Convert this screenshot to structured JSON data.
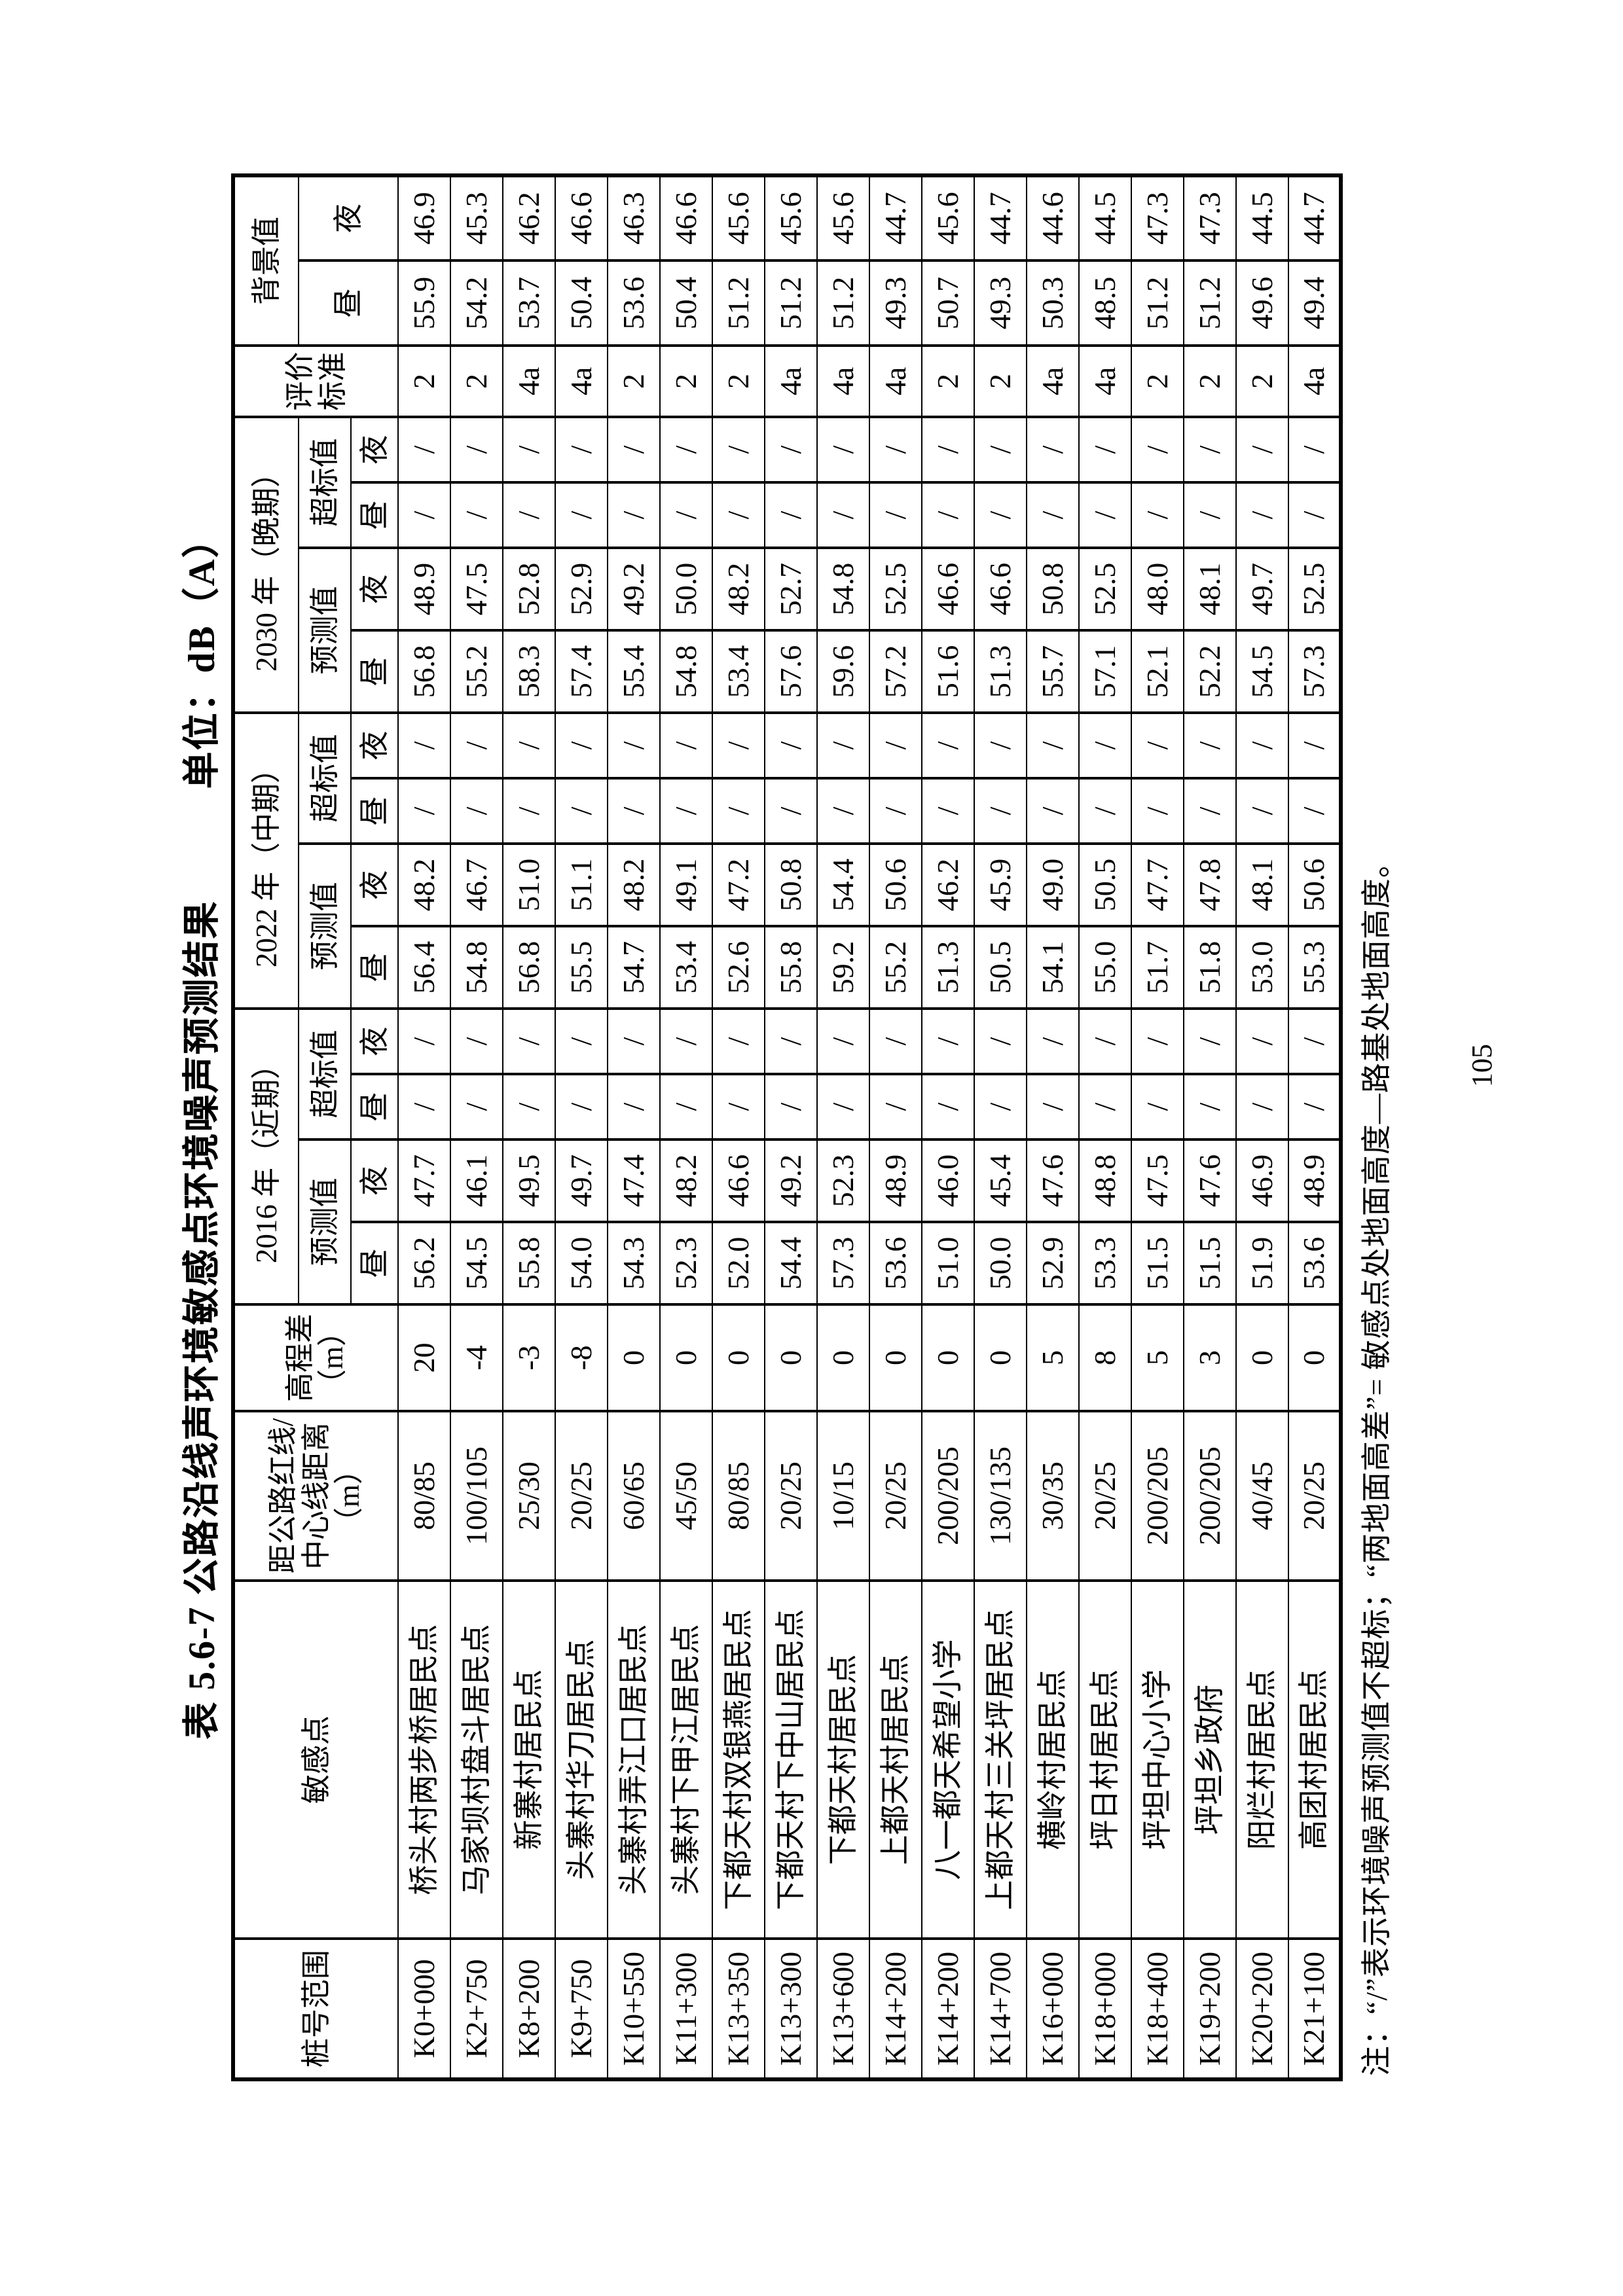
{
  "title": "表 5.6-7 公路沿线声环境敏感点环境噪声预测结果",
  "unit_label": "单位：dB（A）",
  "page_number": "105",
  "note": "注：“/”表示环境噪声预测值不超标；“两地面高差”= 敏感点处地面高度—路基处地面高度。",
  "table": {
    "headers": {
      "stake_range": "桩号范围",
      "sensitive_point": "敏感点",
      "distance": "距公路红线/中心线距离（m）",
      "elevation_diff": "高程差（m）",
      "year_2016": "2016 年（近期）",
      "year_2022": "2022 年（中期）",
      "year_2030": "2030 年（晚期）",
      "predicted": "预测值",
      "exceedance": "超标值",
      "day": "昼",
      "night": "夜",
      "standard": "评价标准",
      "background": "背景值"
    },
    "column_semantics": [
      "stake-range",
      "sensitive-point",
      "distance-m",
      "elevation-diff-m",
      "predicted-2016-day",
      "predicted-2016-night",
      "exceedance-2016-day",
      "exceedance-2016-night",
      "predicted-2022-day",
      "predicted-2022-night",
      "exceedance-2022-day",
      "exceedance-2022-night",
      "predicted-2030-day",
      "predicted-2030-night",
      "exceedance-2030-day",
      "exceedance-2030-night",
      "standard",
      "background-day",
      "background-night"
    ],
    "rows": [
      [
        "K0+000",
        "桥头村两步桥居民点",
        "80/85",
        "20",
        "56.2",
        "47.7",
        "/",
        "/",
        "56.4",
        "48.2",
        "/",
        "/",
        "56.8",
        "48.9",
        "/",
        "/",
        "2",
        "55.9",
        "46.9"
      ],
      [
        "K2+750",
        "马家坝村盘斗居民点",
        "100/105",
        "-4",
        "54.5",
        "46.1",
        "/",
        "/",
        "54.8",
        "46.7",
        "/",
        "/",
        "55.2",
        "47.5",
        "/",
        "/",
        "2",
        "54.2",
        "45.3"
      ],
      [
        "K8+200",
        "新寨村居民点",
        "25/30",
        "-3",
        "55.8",
        "49.5",
        "/",
        "/",
        "56.8",
        "51.0",
        "/",
        "/",
        "58.3",
        "52.8",
        "/",
        "/",
        "4a",
        "53.7",
        "46.2"
      ],
      [
        "K9+750",
        "头寨村华刀居民点",
        "20/25",
        "-8",
        "54.0",
        "49.7",
        "/",
        "/",
        "55.5",
        "51.1",
        "/",
        "/",
        "57.4",
        "52.9",
        "/",
        "/",
        "4a",
        "50.4",
        "46.6"
      ],
      [
        "K10+550",
        "头寨村弄江口居民点",
        "60/65",
        "0",
        "54.3",
        "47.4",
        "/",
        "/",
        "54.7",
        "48.2",
        "/",
        "/",
        "55.4",
        "49.2",
        "/",
        "/",
        "2",
        "53.6",
        "46.3"
      ],
      [
        "K11+300",
        "头寨村下甲江居民点",
        "45/50",
        "0",
        "52.3",
        "48.2",
        "/",
        "/",
        "53.4",
        "49.1",
        "/",
        "/",
        "54.8",
        "50.0",
        "/",
        "/",
        "2",
        "50.4",
        "46.6"
      ],
      [
        "K13+350",
        "下都天村双银燕居民点",
        "80/85",
        "0",
        "52.0",
        "46.6",
        "/",
        "/",
        "52.6",
        "47.2",
        "/",
        "/",
        "53.4",
        "48.2",
        "/",
        "/",
        "2",
        "51.2",
        "45.6"
      ],
      [
        "K13+300",
        "下都天村下中山居民点",
        "20/25",
        "0",
        "54.4",
        "49.2",
        "/",
        "/",
        "55.8",
        "50.8",
        "/",
        "/",
        "57.6",
        "52.7",
        "/",
        "/",
        "4a",
        "51.2",
        "45.6"
      ],
      [
        "K13+600",
        "下都天村居民点",
        "10/15",
        "0",
        "57.3",
        "52.3",
        "/",
        "/",
        "59.2",
        "54.4",
        "/",
        "/",
        "59.6",
        "54.8",
        "/",
        "/",
        "4a",
        "51.2",
        "45.6"
      ],
      [
        "K14+200",
        "上都天村居民点",
        "20/25",
        "0",
        "53.6",
        "48.9",
        "/",
        "/",
        "55.2",
        "50.6",
        "/",
        "/",
        "57.2",
        "52.5",
        "/",
        "/",
        "4a",
        "49.3",
        "44.7"
      ],
      [
        "K14+200",
        "八一都天希望小学",
        "200/205",
        "0",
        "51.0",
        "46.0",
        "/",
        "/",
        "51.3",
        "46.2",
        "/",
        "/",
        "51.6",
        "46.6",
        "/",
        "/",
        "2",
        "50.7",
        "45.6"
      ],
      [
        "K14+700",
        "上都天村三关坪居民点",
        "130/135",
        "0",
        "50.0",
        "45.4",
        "/",
        "/",
        "50.5",
        "45.9",
        "/",
        "/",
        "51.3",
        "46.6",
        "/",
        "/",
        "2",
        "49.3",
        "44.7"
      ],
      [
        "K16+000",
        "横岭村居民点",
        "30/35",
        "5",
        "52.9",
        "47.6",
        "/",
        "/",
        "54.1",
        "49.0",
        "/",
        "/",
        "55.7",
        "50.8",
        "/",
        "/",
        "4a",
        "50.3",
        "44.6"
      ],
      [
        "K18+000",
        "坪日村居民点",
        "20/25",
        "8",
        "53.3",
        "48.8",
        "/",
        "/",
        "55.0",
        "50.5",
        "/",
        "/",
        "57.1",
        "52.5",
        "/",
        "/",
        "4a",
        "48.5",
        "44.5"
      ],
      [
        "K18+400",
        "坪坦中心小学",
        "200/205",
        "5",
        "51.5",
        "47.5",
        "/",
        "/",
        "51.7",
        "47.7",
        "/",
        "/",
        "52.1",
        "48.0",
        "/",
        "/",
        "2",
        "51.2",
        "47.3"
      ],
      [
        "K19+200",
        "坪坦乡政府",
        "200/205",
        "3",
        "51.5",
        "47.6",
        "/",
        "/",
        "51.8",
        "47.8",
        "/",
        "/",
        "52.2",
        "48.1",
        "/",
        "/",
        "2",
        "51.2",
        "47.3"
      ],
      [
        "K20+200",
        "阳烂村居民点",
        "40/45",
        "0",
        "51.9",
        "46.9",
        "/",
        "/",
        "53.0",
        "48.1",
        "/",
        "/",
        "54.5",
        "49.7",
        "/",
        "/",
        "2",
        "49.6",
        "44.5"
      ],
      [
        "K21+100",
        "高团村居民点",
        "20/25",
        "0",
        "53.6",
        "48.9",
        "/",
        "/",
        "55.3",
        "50.6",
        "/",
        "/",
        "57.3",
        "52.5",
        "/",
        "/",
        "4a",
        "49.4",
        "44.7"
      ]
    ]
  }
}
